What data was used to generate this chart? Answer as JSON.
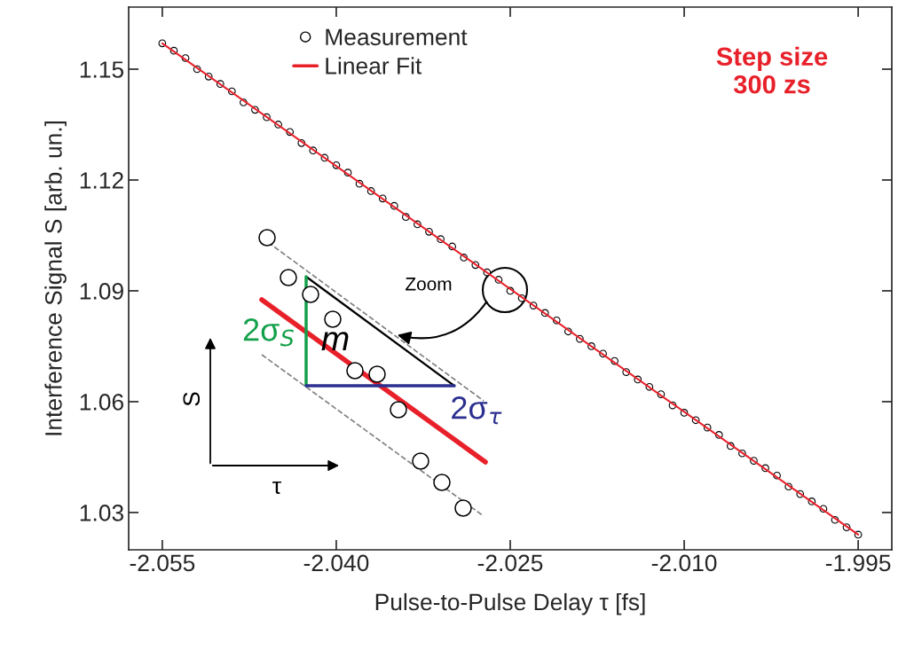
{
  "chart_data": {
    "type": "scatter",
    "xlabel": "Pulse-to-Pulse Delay τ [fs]",
    "ylabel": "Interference Signal S [arb. un.]",
    "xlim": [
      -2.0579,
      -1.9921
    ],
    "ylim": [
      1.0199,
      1.1668
    ],
    "xticks": [
      {
        "value": -2.055,
        "label": "-2.055"
      },
      {
        "value": -2.04,
        "label": "-2.040"
      },
      {
        "value": -2.025,
        "label": "-2.025"
      },
      {
        "value": -2.01,
        "label": "-2.010"
      },
      {
        "value": -1.995,
        "label": "-1.995"
      }
    ],
    "yticks": [
      {
        "value": 1.03,
        "label": "1.03"
      },
      {
        "value": 1.06,
        "label": "1.06"
      },
      {
        "value": 1.09,
        "label": "1.09"
      },
      {
        "value": 1.12,
        "label": "1.12"
      },
      {
        "value": 1.15,
        "label": "1.15"
      }
    ],
    "grid": false,
    "legend": "top",
    "series": [
      {
        "name": "Measurement",
        "marker": "circle",
        "color": "#000000",
        "x": [
          -2.055,
          -2.054,
          -2.053,
          -2.052,
          -2.051,
          -2.05,
          -2.049,
          -2.048,
          -2.047,
          -2.046,
          -2.045,
          -2.044,
          -2.043,
          -2.042,
          -2.041,
          -2.04,
          -2.039,
          -2.038,
          -2.037,
          -2.036,
          -2.035,
          -2.034,
          -2.033,
          -2.032,
          -2.031,
          -2.03,
          -2.029,
          -2.028,
          -2.027,
          -2.026,
          -2.025,
          -2.024,
          -2.023,
          -2.022,
          -2.021,
          -2.02,
          -2.019,
          -2.018,
          -2.017,
          -2.016,
          -2.015,
          -2.014,
          -2.013,
          -2.012,
          -2.011,
          -2.01,
          -2.009,
          -2.008,
          -2.007,
          -2.006,
          -2.005,
          -2.004,
          -2.003,
          -2.002,
          -2.001,
          -2.0,
          -1.999,
          -1.998,
          -1.997,
          -1.996,
          -1.995
        ],
        "values": [
          1.157,
          1.155,
          1.153,
          1.15,
          1.148,
          1.146,
          1.144,
          1.141,
          1.139,
          1.137,
          1.135,
          1.133,
          1.13,
          1.128,
          1.126,
          1.124,
          1.122,
          1.119,
          1.117,
          1.115,
          1.113,
          1.11,
          1.108,
          1.106,
          1.104,
          1.102,
          1.099,
          1.097,
          1.095,
          1.093,
          1.09,
          1.088,
          1.086,
          1.084,
          1.082,
          1.079,
          1.077,
          1.075,
          1.073,
          1.071,
          1.068,
          1.066,
          1.064,
          1.062,
          1.059,
          1.057,
          1.055,
          1.053,
          1.051,
          1.048,
          1.046,
          1.044,
          1.042,
          1.04,
          1.037,
          1.035,
          1.033,
          1.031,
          1.028,
          1.026,
          1.024
        ]
      },
      {
        "name": "Linear Fit",
        "type": "line",
        "color": "#e8202a",
        "x": [
          -2.055,
          -1.995
        ],
        "values": [
          1.157,
          1.024
        ]
      }
    ],
    "annotations": [
      "Step size\n300 zs",
      "Zoom",
      "m",
      "2σ$_{S}$",
      "2σ$_{τ}$",
      "S",
      "τ"
    ]
  }
}
